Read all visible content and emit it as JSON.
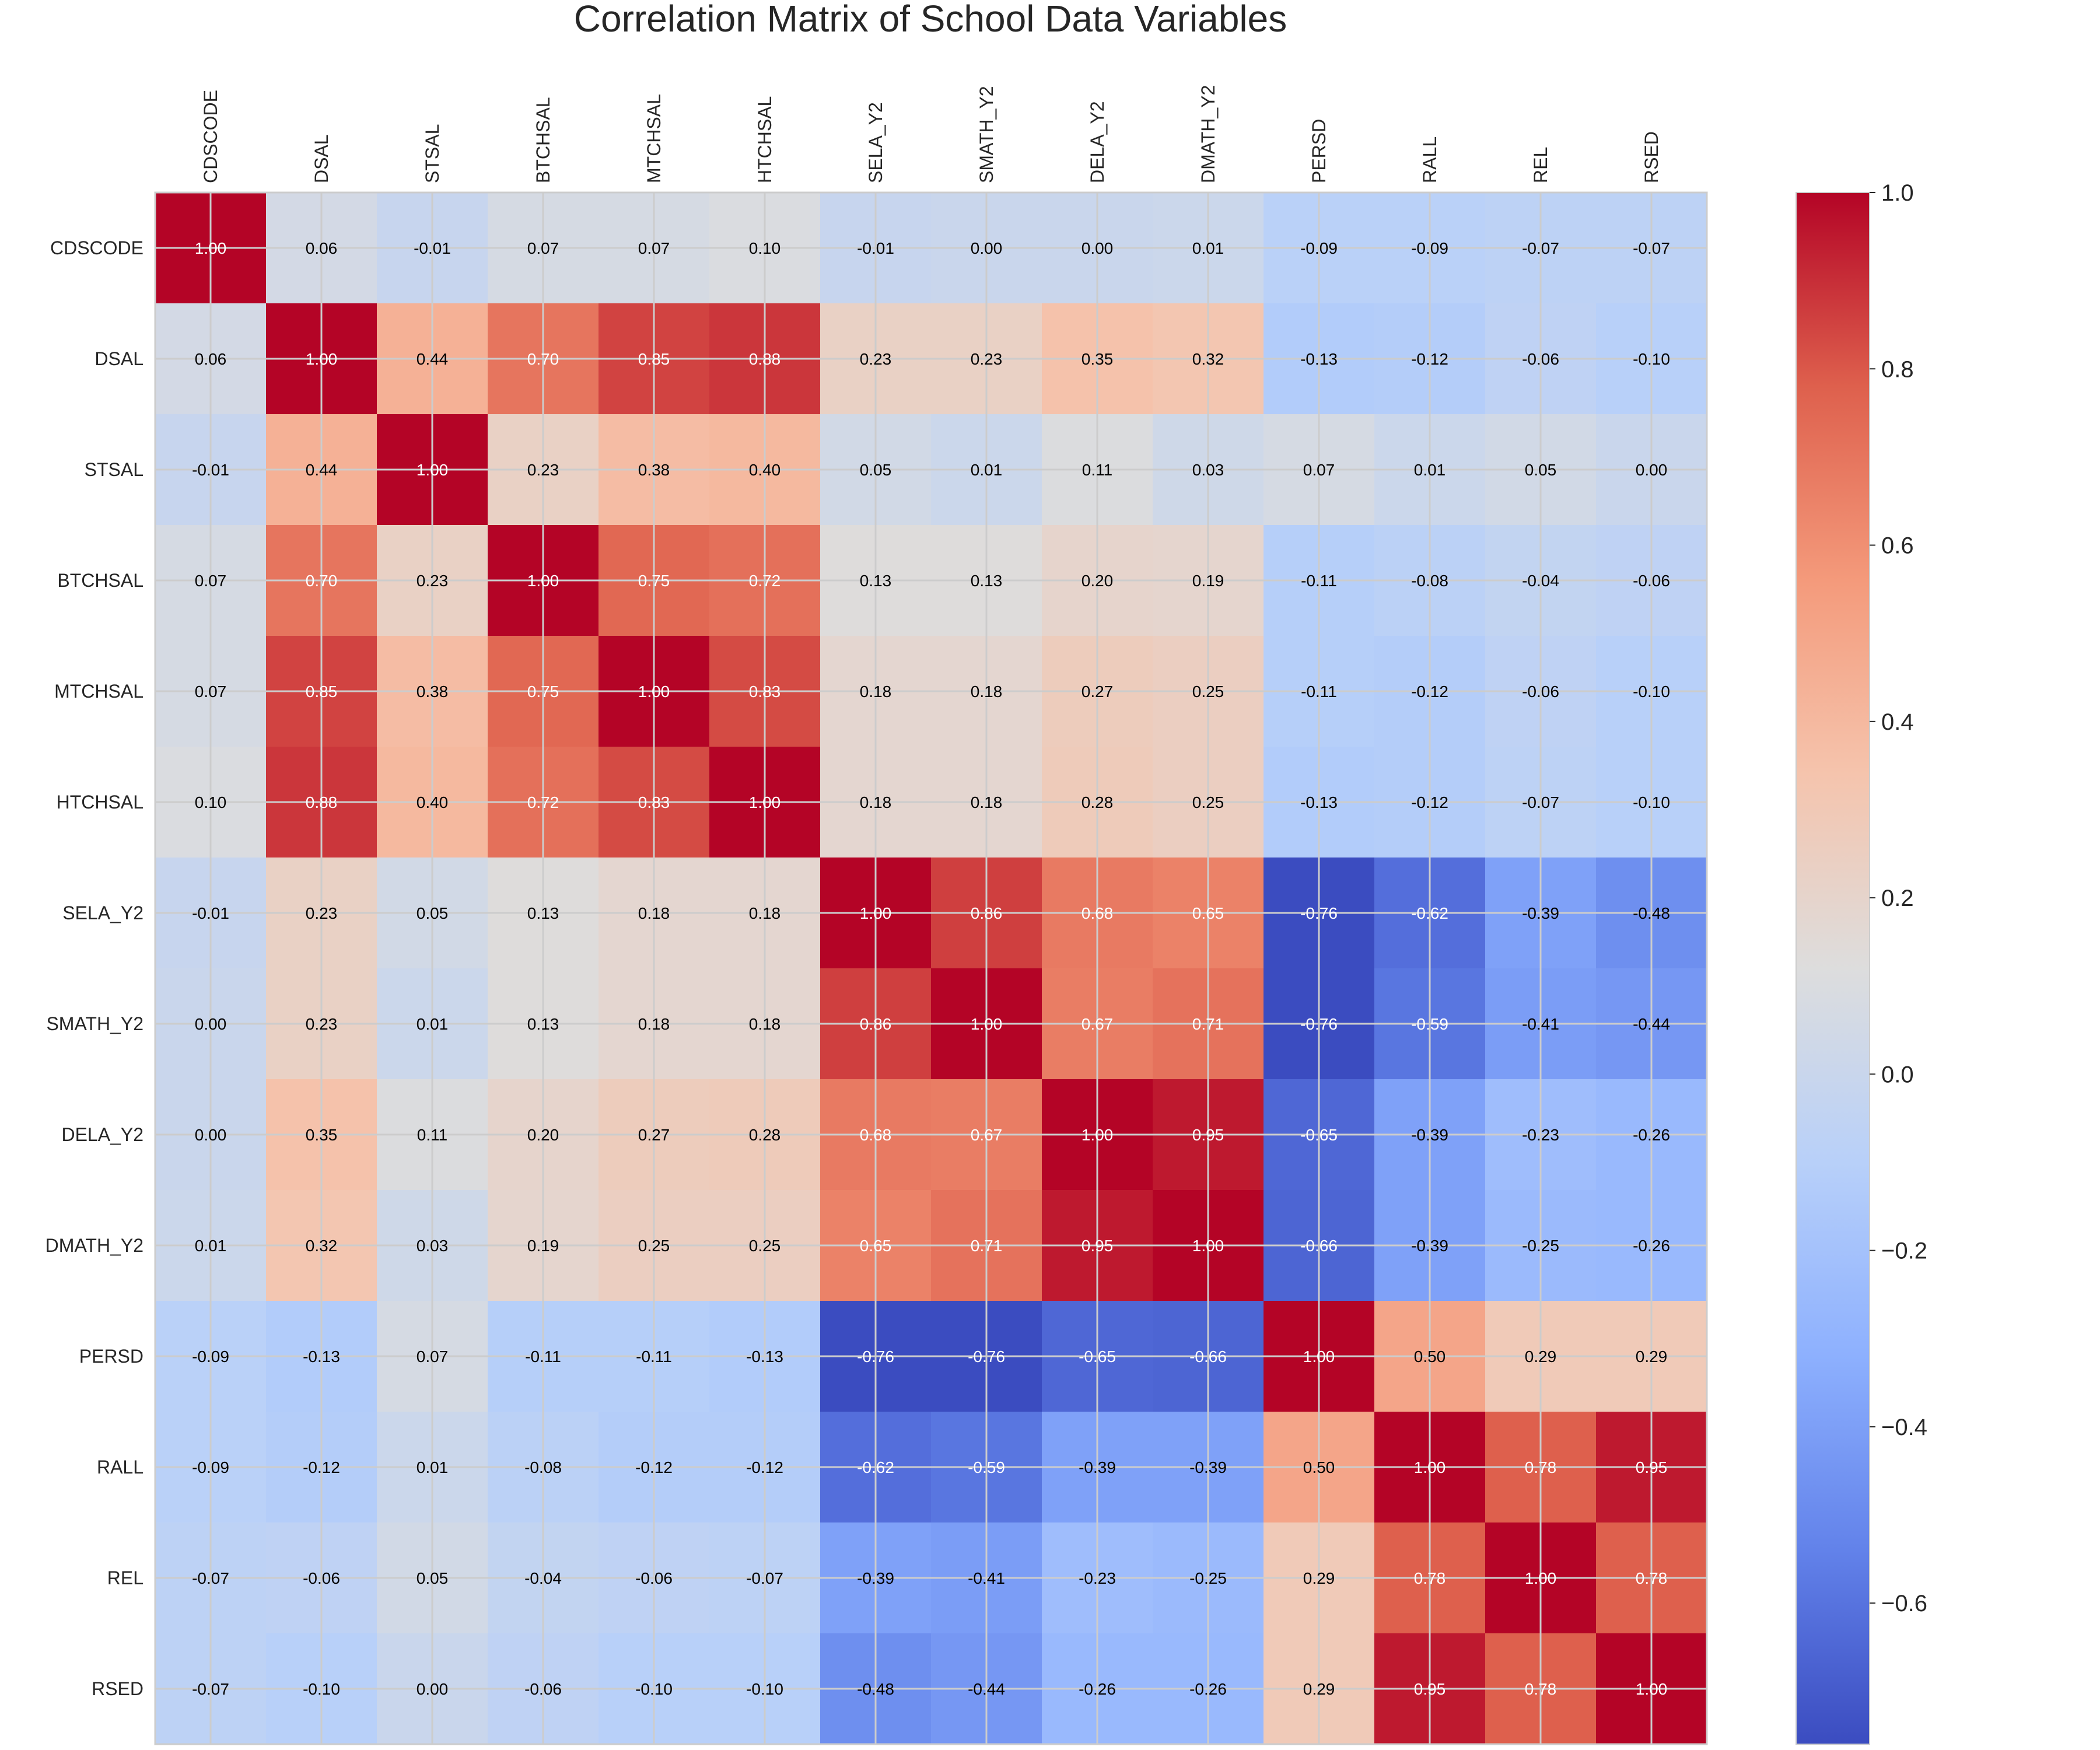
{
  "chart_data": {
    "type": "heatmap",
    "title": "Correlation Matrix of School Data Variables",
    "labels": [
      "CDSCODE",
      "DSAL",
      "STSAL",
      "BTCHSAL",
      "MTCHSAL",
      "HTCHSAL",
      "SELA_Y2",
      "SMATH_Y2",
      "DELA_Y2",
      "DMATH_Y2",
      "PERSD",
      "RALL",
      "REL",
      "RSED"
    ],
    "matrix": [
      [
        1.0,
        0.06,
        -0.01,
        0.07,
        0.07,
        0.1,
        -0.01,
        -0.0,
        -0.0,
        0.01,
        -0.09,
        -0.09,
        -0.07,
        -0.07
      ],
      [
        0.06,
        1.0,
        0.44,
        0.7,
        0.85,
        0.88,
        0.23,
        0.23,
        0.35,
        0.32,
        -0.13,
        -0.12,
        -0.06,
        -0.1
      ],
      [
        -0.01,
        0.44,
        1.0,
        0.23,
        0.38,
        0.4,
        0.05,
        0.01,
        0.11,
        0.03,
        0.07,
        0.01,
        0.05,
        0.0
      ],
      [
        0.07,
        0.7,
        0.23,
        1.0,
        0.75,
        0.72,
        0.13,
        0.13,
        0.2,
        0.19,
        -0.11,
        -0.08,
        -0.04,
        -0.06
      ],
      [
        0.07,
        0.85,
        0.38,
        0.75,
        1.0,
        0.83,
        0.18,
        0.18,
        0.27,
        0.25,
        -0.11,
        -0.12,
        -0.06,
        -0.1
      ],
      [
        0.1,
        0.88,
        0.4,
        0.72,
        0.83,
        1.0,
        0.18,
        0.18,
        0.28,
        0.25,
        -0.13,
        -0.12,
        -0.07,
        -0.1
      ],
      [
        -0.01,
        0.23,
        0.05,
        0.13,
        0.18,
        0.18,
        1.0,
        0.86,
        0.68,
        0.65,
        -0.76,
        -0.62,
        -0.39,
        -0.48
      ],
      [
        -0.0,
        0.23,
        0.01,
        0.13,
        0.18,
        0.18,
        0.86,
        1.0,
        0.67,
        0.71,
        -0.76,
        -0.59,
        -0.41,
        -0.44
      ],
      [
        -0.0,
        0.35,
        0.11,
        0.2,
        0.27,
        0.28,
        0.68,
        0.67,
        1.0,
        0.95,
        -0.65,
        -0.39,
        -0.23,
        -0.26
      ],
      [
        0.01,
        0.32,
        0.03,
        0.19,
        0.25,
        0.25,
        0.65,
        0.71,
        0.95,
        1.0,
        -0.66,
        -0.39,
        -0.25,
        -0.26
      ],
      [
        -0.09,
        -0.13,
        0.07,
        -0.11,
        -0.11,
        -0.13,
        -0.76,
        -0.76,
        -0.65,
        -0.66,
        1.0,
        0.5,
        0.29,
        0.29
      ],
      [
        -0.09,
        -0.12,
        0.01,
        -0.08,
        -0.12,
        -0.12,
        -0.62,
        -0.59,
        -0.39,
        -0.39,
        0.5,
        1.0,
        0.78,
        0.95
      ],
      [
        -0.07,
        -0.06,
        0.05,
        -0.04,
        -0.06,
        -0.07,
        -0.39,
        -0.41,
        -0.23,
        -0.25,
        0.29,
        0.78,
        1.0,
        0.78
      ],
      [
        -0.07,
        -0.1,
        0.0,
        -0.06,
        -0.1,
        -0.1,
        -0.48,
        -0.44,
        -0.26,
        -0.26,
        0.29,
        0.95,
        0.78,
        1.0
      ]
    ],
    "colormap": "coolwarm",
    "vmin": -0.76,
    "vmax": 1.0,
    "colorbar_ticks": [
      1.0,
      0.8,
      0.6,
      0.4,
      0.2,
      0.0,
      -0.2,
      -0.4,
      -0.6
    ],
    "colorbar_tick_labels": [
      "1.0",
      "0.8",
      "0.6",
      "0.4",
      "0.2",
      "0.0",
      "−0.2",
      "−0.4",
      "−0.6"
    ],
    "grid": true,
    "x_label_position": "top",
    "legend": "colorbar right"
  }
}
